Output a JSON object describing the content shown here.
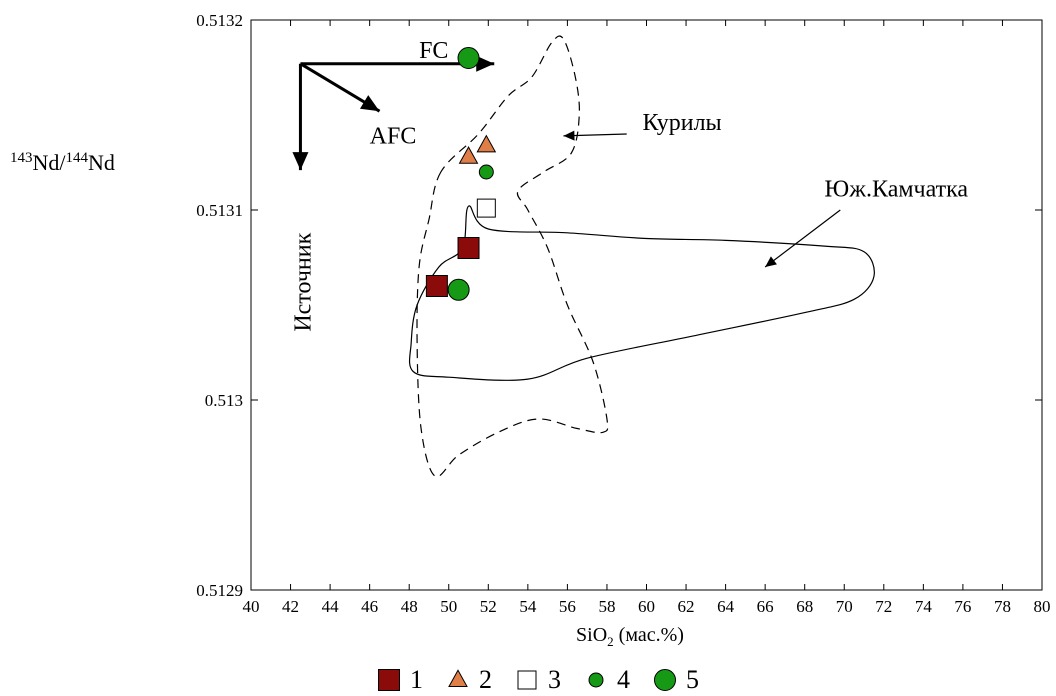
{
  "chart_data": {
    "type": "scatter",
    "title": "",
    "ylabel_parts": {
      "mass_a": "143",
      "elem_a": "Nd",
      "sep": "/",
      "mass_b": "144",
      "elem_b": "Nd"
    },
    "xlabel_parts": {
      "base": "SiO",
      "sub": "2",
      "rest": " (мас.%)"
    },
    "xlim": [
      40,
      80
    ],
    "ylim": [
      0.5129,
      0.5132
    ],
    "x_ticks": [
      40,
      42,
      44,
      46,
      48,
      50,
      52,
      54,
      56,
      58,
      60,
      62,
      64,
      66,
      68,
      70,
      72,
      74,
      76,
      78,
      80
    ],
    "y_ticks": [
      {
        "value": 0.5129,
        "label": "0.5129"
      },
      {
        "value": 0.513,
        "label": "0.513"
      },
      {
        "value": 0.5131,
        "label": "0.5131"
      },
      {
        "value": 0.5132,
        "label": "0.5132"
      }
    ],
    "grid": false,
    "legend_position": "bottom",
    "series": [
      {
        "name": "1",
        "marker": "square",
        "size": "large",
        "color": "#8b0a0a",
        "points": [
          [
            49.4,
            0.51306
          ],
          [
            51.0,
            0.51308
          ]
        ]
      },
      {
        "name": "2",
        "marker": "triangle",
        "size": "medium",
        "color": "#e07e48",
        "points": [
          [
            51.0,
            0.513128
          ],
          [
            51.9,
            0.513134
          ]
        ]
      },
      {
        "name": "3",
        "marker": "square",
        "size": "medium",
        "color": "#ffffff",
        "points": [
          [
            51.9,
            0.513101
          ]
        ]
      },
      {
        "name": "4",
        "marker": "circle",
        "size": "small",
        "color": "#169a16",
        "points": [
          [
            51.9,
            0.51312
          ]
        ]
      },
      {
        "name": "5",
        "marker": "circle",
        "size": "large",
        "color": "#169a16",
        "points": [
          [
            51.0,
            0.51318
          ],
          [
            50.5,
            0.513058
          ]
        ]
      }
    ],
    "regions": [
      {
        "label": "Курилы",
        "style": "dashed",
        "points": [
          [
            49.6,
            0.51312
          ],
          [
            49.0,
            0.513095
          ],
          [
            48.5,
            0.51307
          ],
          [
            48.4,
            0.51303
          ],
          [
            48.6,
            0.512985
          ],
          [
            49.3,
            0.51296
          ],
          [
            50.5,
            0.512971
          ],
          [
            52.5,
            0.512983
          ],
          [
            54.5,
            0.51299
          ],
          [
            56.5,
            0.512985
          ],
          [
            57.8,
            0.512983
          ],
          [
            58.0,
            0.51299
          ],
          [
            57.3,
            0.51302
          ],
          [
            56.0,
            0.51305
          ],
          [
            55.0,
            0.51308
          ],
          [
            54.0,
            0.5131
          ],
          [
            53.5,
            0.51311
          ],
          [
            54.8,
            0.51312
          ],
          [
            56.2,
            0.51313
          ],
          [
            56.6,
            0.51315
          ],
          [
            56.4,
            0.51317
          ],
          [
            55.8,
            0.51319
          ],
          [
            55.2,
            0.513188
          ],
          [
            54.2,
            0.51317
          ],
          [
            53.0,
            0.51316
          ],
          [
            51.5,
            0.51314
          ]
        ]
      },
      {
        "label": "Юж.Камчатка",
        "style": "solid",
        "points": [
          [
            51.0,
            0.513102
          ],
          [
            52.0,
            0.51309
          ],
          [
            56.0,
            0.513088
          ],
          [
            60.0,
            0.513085
          ],
          [
            64.0,
            0.513084
          ],
          [
            69.0,
            0.513081
          ],
          [
            71.0,
            0.513078
          ],
          [
            71.5,
            0.513065
          ],
          [
            70.5,
            0.513053
          ],
          [
            68.0,
            0.513046
          ],
          [
            62.5,
            0.513034
          ],
          [
            57.0,
            0.513022
          ],
          [
            54.0,
            0.513011
          ],
          [
            50.0,
            0.513012
          ],
          [
            48.2,
            0.513015
          ],
          [
            48.1,
            0.51303
          ],
          [
            48.4,
            0.51305
          ],
          [
            49.5,
            0.51307
          ],
          [
            50.7,
            0.51308
          ]
        ]
      }
    ],
    "annotations": [
      {
        "text": "FC",
        "x": 48.5,
        "y": 0.51318
      },
      {
        "text": "AFC",
        "x": 46.0,
        "y": 0.513135
      },
      {
        "text": "Источник",
        "x": 43.0,
        "y": 0.513062,
        "rotation": -90
      },
      {
        "text": "Курилы",
        "x": 59.8,
        "y": 0.513142
      },
      {
        "text": "Юж.Камчатка",
        "x": 69.0,
        "y": 0.513107
      }
    ],
    "arrows": [
      {
        "from": [
          42.5,
          0.513177
        ],
        "to": [
          52.3,
          0.513177
        ]
      },
      {
        "from": [
          42.5,
          0.513177
        ],
        "to": [
          46.5,
          0.513152
        ]
      },
      {
        "from": [
          42.5,
          0.513177
        ],
        "to": [
          42.5,
          0.513121
        ]
      },
      {
        "from": [
          59.0,
          0.51314
        ],
        "to": [
          55.8,
          0.513139
        ]
      },
      {
        "from": [
          69.8,
          0.5131
        ],
        "to": [
          66.0,
          0.51307
        ]
      }
    ]
  }
}
